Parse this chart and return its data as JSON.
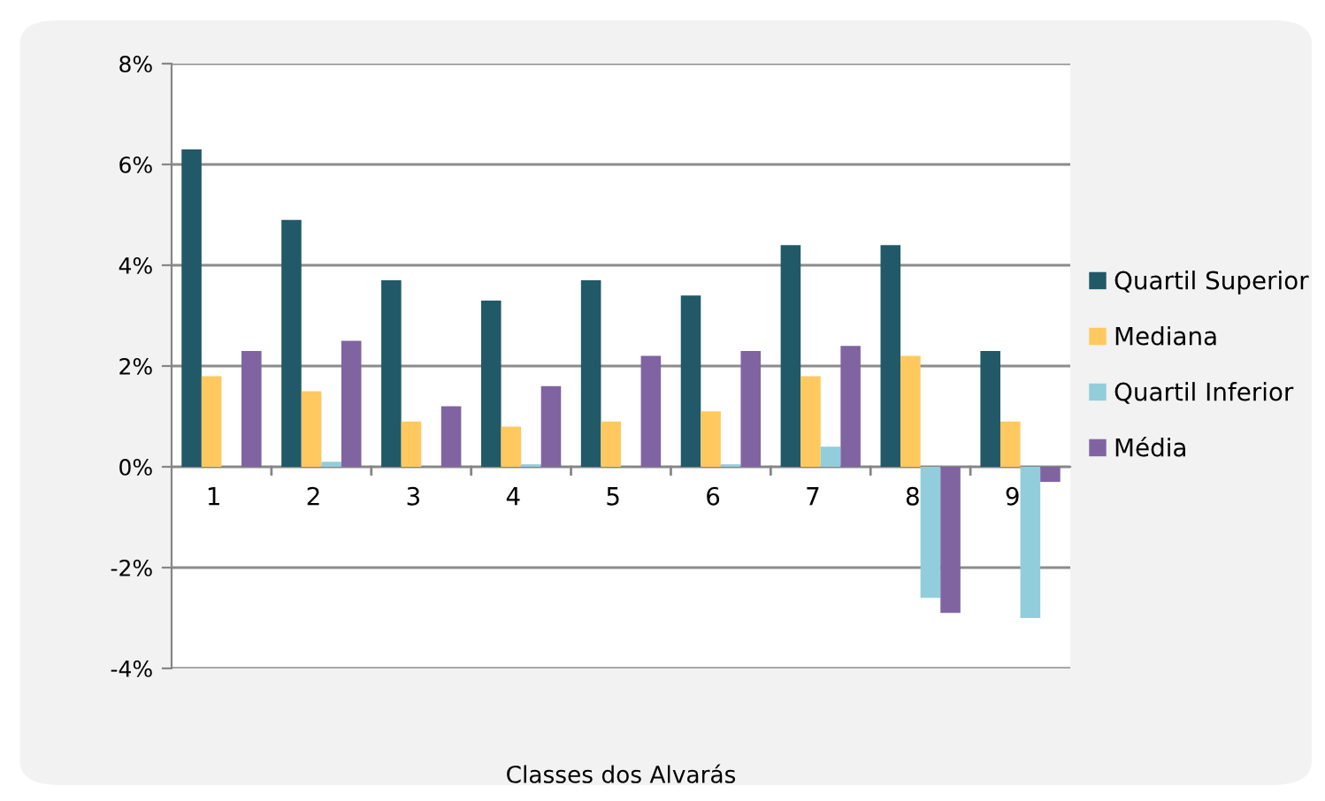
{
  "chart_data": {
    "type": "bar",
    "xlabel": "Classes dos Alvarás",
    "categories": [
      "1",
      "2",
      "3",
      "4",
      "5",
      "6",
      "7",
      "8",
      "9"
    ],
    "series": [
      {
        "name": "Quartil Superior",
        "color": "#215968",
        "values": [
          6.3,
          4.9,
          3.7,
          3.3,
          3.7,
          3.4,
          4.4,
          4.4,
          2.3
        ]
      },
      {
        "name": "Mediana",
        "color": "#ffc95f",
        "values": [
          1.8,
          1.5,
          0.9,
          0.8,
          0.9,
          1.1,
          1.8,
          2.2,
          0.9
        ]
      },
      {
        "name": "Quartil Inferior",
        "color": "#92cddc",
        "values": [
          0,
          0.1,
          0,
          0.05,
          0,
          0.05,
          0.4,
          -2.6,
          -3.0
        ]
      },
      {
        "name": "Média",
        "color": "#8064a2",
        "values": [
          2.3,
          2.5,
          1.2,
          1.6,
          2.2,
          2.3,
          2.4,
          -2.9,
          -0.3
        ]
      }
    ],
    "ylim": [
      -4,
      8
    ],
    "yticks": [
      {
        "value": -4,
        "label": "-4%"
      },
      {
        "value": -2,
        "label": "-2%"
      },
      {
        "value": 0,
        "label": "0%"
      },
      {
        "value": 2,
        "label": "2%"
      },
      {
        "value": 4,
        "label": "4%"
      },
      {
        "value": 6,
        "label": "6%"
      },
      {
        "value": 8,
        "label": "8%"
      }
    ],
    "grid": "y",
    "legend": "right"
  }
}
